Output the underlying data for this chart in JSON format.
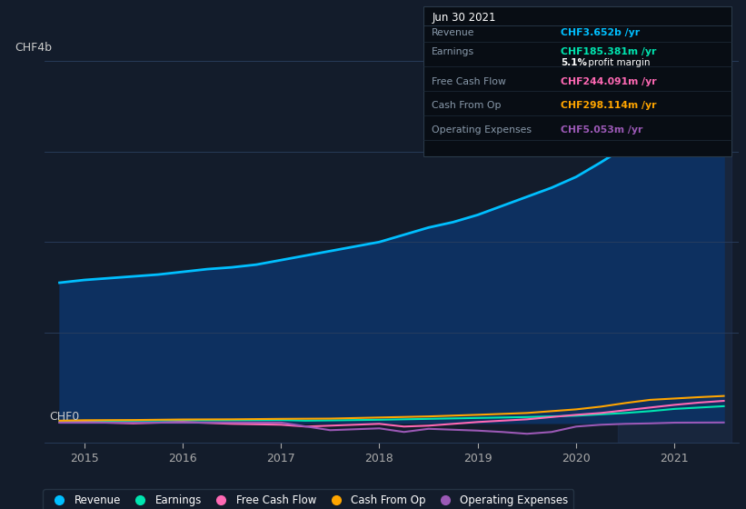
{
  "background_color": "#131c2b",
  "plot_bg_color": "#131c2b",
  "highlight_bg_color": "#1e3050",
  "ylabel_top": "CHF4b",
  "ylabel_bottom": "CHF0",
  "x_years": [
    2015,
    2016,
    2017,
    2018,
    2019,
    2020,
    2021
  ],
  "revenue": [
    [
      2014.75,
      1.55
    ],
    [
      2015.0,
      1.58
    ],
    [
      2015.25,
      1.6
    ],
    [
      2015.5,
      1.62
    ],
    [
      2015.75,
      1.64
    ],
    [
      2016.0,
      1.67
    ],
    [
      2016.25,
      1.7
    ],
    [
      2016.5,
      1.72
    ],
    [
      2016.75,
      1.75
    ],
    [
      2017.0,
      1.8
    ],
    [
      2017.25,
      1.85
    ],
    [
      2017.5,
      1.9
    ],
    [
      2017.75,
      1.95
    ],
    [
      2018.0,
      2.0
    ],
    [
      2018.25,
      2.08
    ],
    [
      2018.5,
      2.16
    ],
    [
      2018.75,
      2.22
    ],
    [
      2019.0,
      2.3
    ],
    [
      2019.25,
      2.4
    ],
    [
      2019.5,
      2.5
    ],
    [
      2019.75,
      2.6
    ],
    [
      2020.0,
      2.72
    ],
    [
      2020.25,
      2.88
    ],
    [
      2020.5,
      3.05
    ],
    [
      2020.75,
      3.22
    ],
    [
      2021.0,
      3.4
    ],
    [
      2021.25,
      3.55
    ],
    [
      2021.5,
      3.65
    ]
  ],
  "earnings": [
    [
      2014.75,
      0.02
    ],
    [
      2015.0,
      0.022
    ],
    [
      2015.5,
      0.025
    ],
    [
      2016.0,
      0.028
    ],
    [
      2016.5,
      0.03
    ],
    [
      2017.0,
      0.032
    ],
    [
      2017.25,
      0.025
    ],
    [
      2017.5,
      0.028
    ],
    [
      2018.0,
      0.035
    ],
    [
      2018.5,
      0.045
    ],
    [
      2019.0,
      0.055
    ],
    [
      2019.5,
      0.065
    ],
    [
      2020.0,
      0.08
    ],
    [
      2020.25,
      0.095
    ],
    [
      2020.5,
      0.11
    ],
    [
      2020.75,
      0.13
    ],
    [
      2021.0,
      0.155
    ],
    [
      2021.25,
      0.17
    ],
    [
      2021.5,
      0.185
    ]
  ],
  "free_cash_flow": [
    [
      2014.75,
      0.005
    ],
    [
      2015.0,
      0.01
    ],
    [
      2015.5,
      -0.005
    ],
    [
      2016.0,
      0.01
    ],
    [
      2016.5,
      -0.01
    ],
    [
      2017.0,
      -0.02
    ],
    [
      2017.25,
      -0.04
    ],
    [
      2017.5,
      -0.03
    ],
    [
      2018.0,
      -0.01
    ],
    [
      2018.25,
      -0.04
    ],
    [
      2018.5,
      -0.03
    ],
    [
      2019.0,
      0.01
    ],
    [
      2019.5,
      0.04
    ],
    [
      2020.0,
      0.09
    ],
    [
      2020.25,
      0.11
    ],
    [
      2020.5,
      0.14
    ],
    [
      2020.75,
      0.17
    ],
    [
      2021.0,
      0.2
    ],
    [
      2021.25,
      0.225
    ],
    [
      2021.5,
      0.244
    ]
  ],
  "cash_from_op": [
    [
      2014.75,
      0.025
    ],
    [
      2015.0,
      0.03
    ],
    [
      2015.5,
      0.032
    ],
    [
      2016.0,
      0.038
    ],
    [
      2016.5,
      0.04
    ],
    [
      2017.0,
      0.045
    ],
    [
      2017.5,
      0.048
    ],
    [
      2018.0,
      0.06
    ],
    [
      2018.5,
      0.072
    ],
    [
      2019.0,
      0.09
    ],
    [
      2019.5,
      0.11
    ],
    [
      2020.0,
      0.15
    ],
    [
      2020.25,
      0.18
    ],
    [
      2020.5,
      0.22
    ],
    [
      2020.75,
      0.255
    ],
    [
      2021.0,
      0.27
    ],
    [
      2021.25,
      0.285
    ],
    [
      2021.5,
      0.298
    ]
  ],
  "operating_expenses": [
    [
      2014.75,
      0.003
    ],
    [
      2015.0,
      0.003
    ],
    [
      2015.5,
      0.003
    ],
    [
      2016.0,
      0.004
    ],
    [
      2016.5,
      0.004
    ],
    [
      2017.0,
      0.004
    ],
    [
      2017.5,
      -0.08
    ],
    [
      2018.0,
      -0.06
    ],
    [
      2018.25,
      -0.1
    ],
    [
      2018.5,
      -0.065
    ],
    [
      2019.0,
      -0.085
    ],
    [
      2019.25,
      -0.1
    ],
    [
      2019.5,
      -0.12
    ],
    [
      2019.75,
      -0.1
    ],
    [
      2020.0,
      -0.04
    ],
    [
      2020.25,
      -0.02
    ],
    [
      2020.5,
      -0.01
    ],
    [
      2020.75,
      -0.005
    ],
    [
      2021.0,
      0.003
    ],
    [
      2021.25,
      0.004
    ],
    [
      2021.5,
      0.005
    ]
  ],
  "revenue_color": "#00bfff",
  "earnings_color": "#00e5b0",
  "free_cash_flow_color": "#ff69b4",
  "cash_from_op_color": "#ffa500",
  "operating_expenses_color": "#9b59b6",
  "fill_color": "#0d3060",
  "highlight_x_start": 2020.42,
  "highlight_x_end": 2021.58,
  "ylim_min": -0.22,
  "ylim_max": 4.0,
  "xlim_min": 2014.6,
  "xlim_max": 2021.65,
  "info_box": {
    "date": "Jun 30 2021",
    "revenue_label": "Revenue",
    "revenue_value": "CHF3.652b /yr",
    "revenue_color": "#00bfff",
    "earnings_label": "Earnings",
    "earnings_value": "CHF185.381m /yr",
    "earnings_color": "#00e5b0",
    "profit_margin_bold": "5.1%",
    "profit_margin_rest": " profit margin",
    "fcf_label": "Free Cash Flow",
    "fcf_value": "CHF244.091m /yr",
    "fcf_color": "#ff69b4",
    "cashop_label": "Cash From Op",
    "cashop_value": "CHF298.114m /yr",
    "cashop_color": "#ffa500",
    "opex_label": "Operating Expenses",
    "opex_value": "CHF5.053m /yr",
    "opex_color": "#9b59b6"
  },
  "legend_items": [
    "Revenue",
    "Earnings",
    "Free Cash Flow",
    "Cash From Op",
    "Operating Expenses"
  ],
  "legend_colors": [
    "#00bfff",
    "#00e5b0",
    "#ff69b4",
    "#ffa500",
    "#9b59b6"
  ]
}
